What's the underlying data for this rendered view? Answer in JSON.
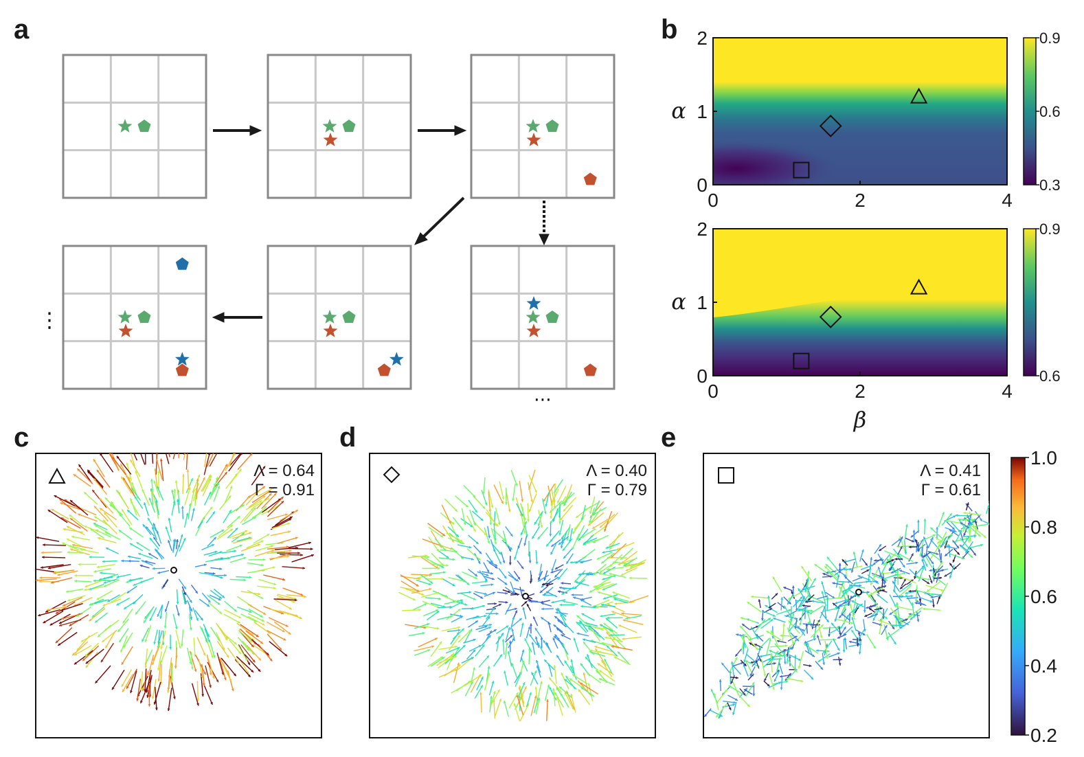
{
  "panel_labels": {
    "a": "a",
    "b": "b",
    "c": "c",
    "d": "d",
    "e": "e"
  },
  "colors": {
    "green": "#5aa96e",
    "red": "#c2522f",
    "blue": "#1f6fa8",
    "grid_frame": "#888888",
    "grid_line": "#c8c8c8"
  },
  "schematic": {
    "grids": [
      {
        "id": "g1",
        "items": [
          [
            "star",
            "green",
            0,
            0
          ],
          [
            "pentagon",
            "green",
            0,
            0
          ]
        ]
      },
      {
        "id": "g2",
        "items": [
          [
            "star",
            "green",
            0,
            0
          ],
          [
            "pentagon",
            "green",
            0,
            0
          ],
          [
            "star",
            "red",
            0,
            0
          ]
        ]
      },
      {
        "id": "g3",
        "items": [
          [
            "star",
            "green",
            0,
            0
          ],
          [
            "pentagon",
            "green",
            0,
            0
          ],
          [
            "star",
            "red",
            0,
            0
          ],
          [
            "pentagon",
            "red",
            1,
            1
          ]
        ]
      },
      {
        "id": "g4",
        "items": [
          [
            "star",
            "green",
            0,
            0
          ],
          [
            "pentagon",
            "green",
            0,
            0
          ],
          [
            "star",
            "red",
            0,
            0
          ],
          [
            "pentagon",
            "blue",
            1,
            -1
          ],
          [
            "star",
            "blue",
            1,
            1
          ],
          [
            "pentagon",
            "red",
            1,
            1
          ]
        ]
      },
      {
        "id": "g5",
        "items": [
          [
            "star",
            "green",
            0,
            0
          ],
          [
            "pentagon",
            "green",
            0,
            0
          ],
          [
            "star",
            "red",
            0,
            0
          ],
          [
            "pentagon",
            "red",
            1,
            1
          ],
          [
            "star",
            "blue",
            1,
            1
          ]
        ]
      },
      {
        "id": "g6",
        "items": [
          [
            "star",
            "blue",
            0,
            0
          ],
          [
            "star",
            "green",
            0,
            0
          ],
          [
            "pentagon",
            "green",
            0,
            0
          ],
          [
            "star",
            "red",
            0,
            0
          ],
          [
            "pentagon",
            "red",
            1,
            1
          ]
        ]
      }
    ],
    "ellipsis_left": "⋮",
    "ellipsis_bottom": "⋯"
  },
  "chart_data": [
    {
      "id": "b-top",
      "type": "heatmap",
      "xlabel": "",
      "ylabel": "α",
      "xlim": [
        0,
        4
      ],
      "ylim": [
        0,
        2
      ],
      "xticks": [
        "0",
        "2",
        "4"
      ],
      "yticks": [
        "0",
        "1",
        "2"
      ],
      "colorbar": {
        "range": [
          0.3,
          0.9
        ],
        "ticks": [
          "0.3",
          "0.6",
          "0.9"
        ],
        "colormap": "viridis"
      },
      "markers": [
        {
          "shape": "triangle",
          "beta": 2.8,
          "alpha": 1.2
        },
        {
          "shape": "diamond",
          "beta": 1.6,
          "alpha": 0.8
        },
        {
          "shape": "square",
          "beta": 1.2,
          "alpha": 0.2
        }
      ]
    },
    {
      "id": "b-bottom",
      "type": "heatmap",
      "xlabel": "β",
      "ylabel": "α",
      "xlim": [
        0,
        4
      ],
      "ylim": [
        0,
        2
      ],
      "xticks": [
        "0",
        "2",
        "4"
      ],
      "yticks": [
        "0",
        "1",
        "2"
      ],
      "colorbar": {
        "range": [
          0.6,
          0.9
        ],
        "ticks": [
          "0.6",
          "0.9"
        ],
        "colormap": "viridis"
      },
      "markers": [
        {
          "shape": "triangle",
          "beta": 2.8,
          "alpha": 1.2
        },
        {
          "shape": "diamond",
          "beta": 1.6,
          "alpha": 0.8
        },
        {
          "shape": "square",
          "beta": 1.2,
          "alpha": 0.2
        }
      ]
    },
    {
      "id": "c",
      "type": "scatter",
      "subtype": "quiver",
      "marker": "triangle",
      "lambda_label": "Λ = 0.64",
      "gamma_label": "Γ = 0.91",
      "pattern": "radial-out",
      "mean_magnitude": 0.64
    },
    {
      "id": "d",
      "type": "scatter",
      "subtype": "quiver",
      "marker": "diamond",
      "lambda_label": "Λ = 0.40",
      "gamma_label": "Γ = 0.79",
      "pattern": "radial-in",
      "mean_magnitude": 0.4
    },
    {
      "id": "e",
      "type": "scatter",
      "subtype": "quiver",
      "marker": "square",
      "lambda_label": "Λ = 0.41",
      "gamma_label": "Γ = 0.61",
      "pattern": "random",
      "mean_magnitude": 0.41
    },
    {
      "id": "quiver-colorbar",
      "type": "heatmap",
      "colormap": "turbo",
      "range": [
        0.2,
        1.0
      ],
      "ticks": [
        "0.2",
        "0.4",
        "0.6",
        "0.8",
        "1.0"
      ]
    }
  ]
}
